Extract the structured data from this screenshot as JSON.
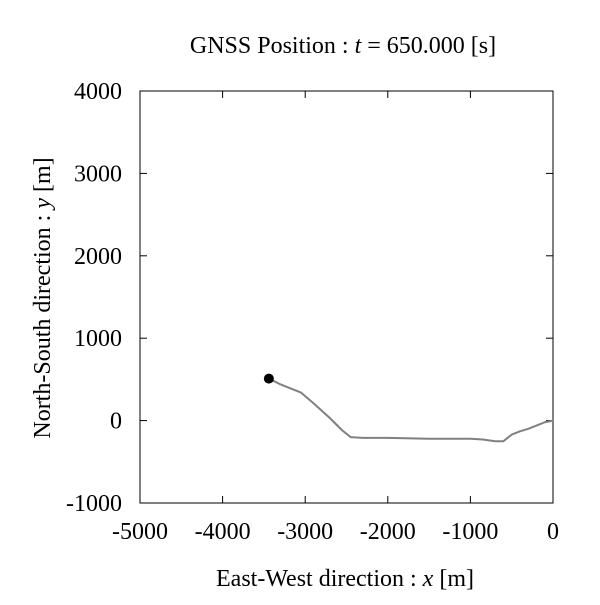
{
  "chart_data": {
    "type": "line",
    "title": {
      "prefix": "GNSS Position : ",
      "variable": "t",
      "suffix": " = 650.000 [s]"
    },
    "xlabel": {
      "prefix": "East-West direction : ",
      "variable": "x",
      "suffix": "  [m]"
    },
    "ylabel": {
      "prefix": "North-South direction : ",
      "variable": "y",
      "suffix": "  [m]"
    },
    "xlim": [
      -5000,
      0
    ],
    "ylim": [
      -1000,
      4000
    ],
    "x_ticks": [
      -5000,
      -4000,
      -3000,
      -2000,
      -1000,
      0
    ],
    "y_ticks": [
      -1000,
      0,
      1000,
      2000,
      3000,
      4000
    ],
    "x_tick_labels": [
      "-5000",
      "-4000",
      "-3000",
      "-2000",
      "-1000",
      "0"
    ],
    "y_tick_labels": [
      "-1000",
      "0",
      "1000",
      "2000",
      "3000",
      "4000"
    ],
    "grid": false,
    "series": [
      {
        "color": "#808080",
        "x": [
          0,
          -100,
          -200,
          -300,
          -400,
          -500,
          -550,
          -600,
          -700,
          -850,
          -1000,
          -1500,
          -2000,
          -2300,
          -2450,
          -2550,
          -2700,
          -2900,
          -3050,
          -3150,
          -3300,
          -3440
        ],
        "y": [
          0,
          -20,
          -60,
          -100,
          -130,
          -170,
          -210,
          -250,
          -250,
          -230,
          -220,
          -220,
          -210,
          -210,
          -200,
          -120,
          30,
          210,
          340,
          380,
          440,
          510
        ]
      }
    ],
    "current_position": {
      "x": -3440,
      "y": 510,
      "color": "#000000"
    }
  }
}
